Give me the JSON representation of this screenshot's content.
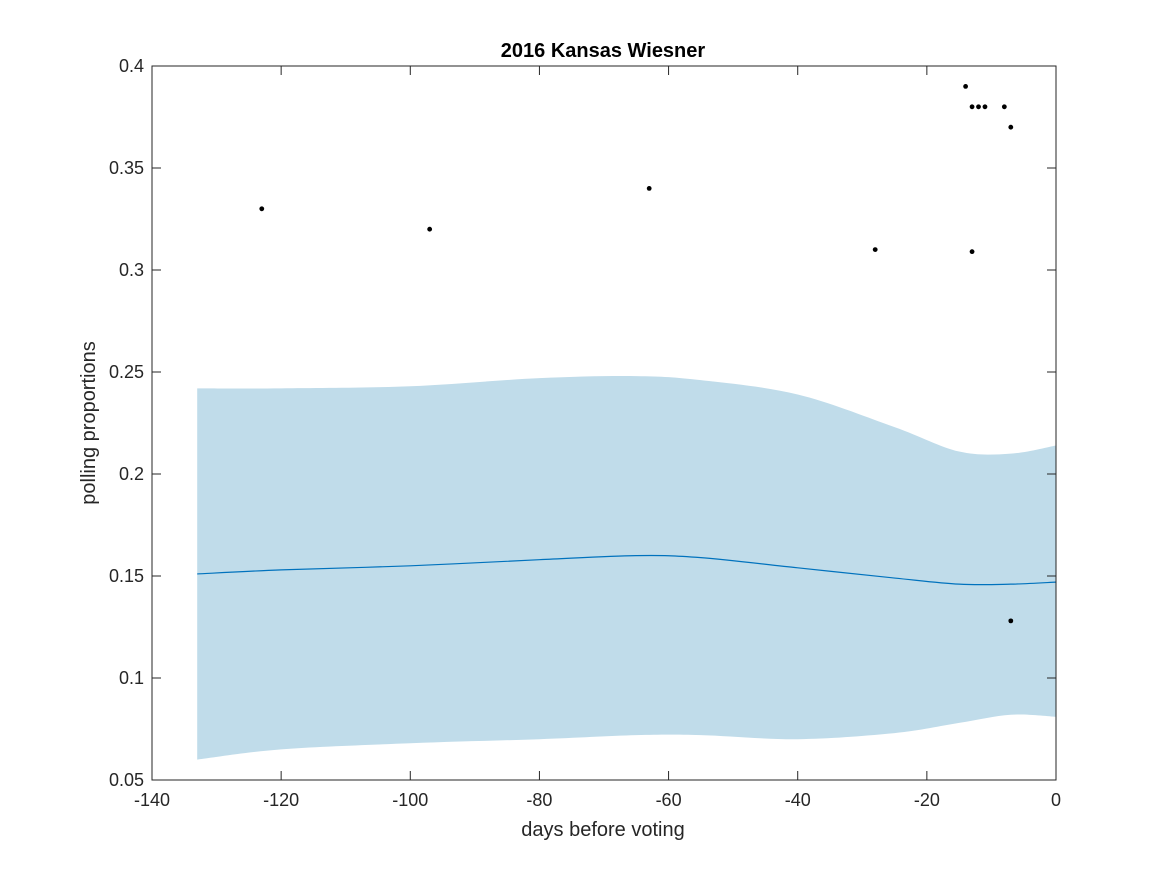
{
  "chart_data": {
    "type": "scatter",
    "title": "2016 Kansas Wiesner",
    "xlabel": "days before voting",
    "ylabel": "polling proportions",
    "xlim": [
      -140,
      0
    ],
    "ylim": [
      0.05,
      0.4
    ],
    "xticks": [
      -140,
      -120,
      -100,
      -80,
      -60,
      -40,
      -20,
      0
    ],
    "yticks": [
      0.05,
      0.1,
      0.15,
      0.2,
      0.25,
      0.3,
      0.35,
      0.4
    ],
    "xtick_labels": [
      "-140",
      "-120",
      "-100",
      "-80",
      "-60",
      "-40",
      "-20",
      "0"
    ],
    "ytick_labels": [
      "0.05",
      "0.1",
      "0.15",
      "0.2",
      "0.25",
      "0.3",
      "0.35",
      "0.4"
    ],
    "grid": false,
    "colors": {
      "band": "#c0dcea",
      "line": "#0072bd",
      "points": "#000000"
    },
    "points": {
      "x": [
        -123,
        -97,
        -63,
        -28,
        -14,
        -13,
        -13,
        -12,
        -11,
        -8,
        -7,
        -7
      ],
      "y": [
        0.33,
        0.32,
        0.34,
        0.31,
        0.39,
        0.38,
        0.309,
        0.38,
        0.38,
        0.38,
        0.37,
        0.128
      ]
    },
    "mean_line": {
      "x": [
        -133,
        -120,
        -100,
        -80,
        -65,
        -55,
        -40,
        -25,
        -15,
        -7,
        0
      ],
      "y": [
        0.151,
        0.153,
        0.155,
        0.158,
        0.16,
        0.159,
        0.154,
        0.149,
        0.146,
        0.146,
        0.147
      ]
    },
    "band": {
      "x": [
        -133,
        -120,
        -100,
        -80,
        -65,
        -55,
        -40,
        -25,
        -15,
        -7,
        0
      ],
      "upper": [
        0.242,
        0.242,
        0.243,
        0.247,
        0.248,
        0.246,
        0.239,
        0.223,
        0.211,
        0.21,
        0.214
      ],
      "lower": [
        0.06,
        0.065,
        0.068,
        0.07,
        0.072,
        0.072,
        0.07,
        0.073,
        0.078,
        0.082,
        0.081
      ]
    }
  }
}
